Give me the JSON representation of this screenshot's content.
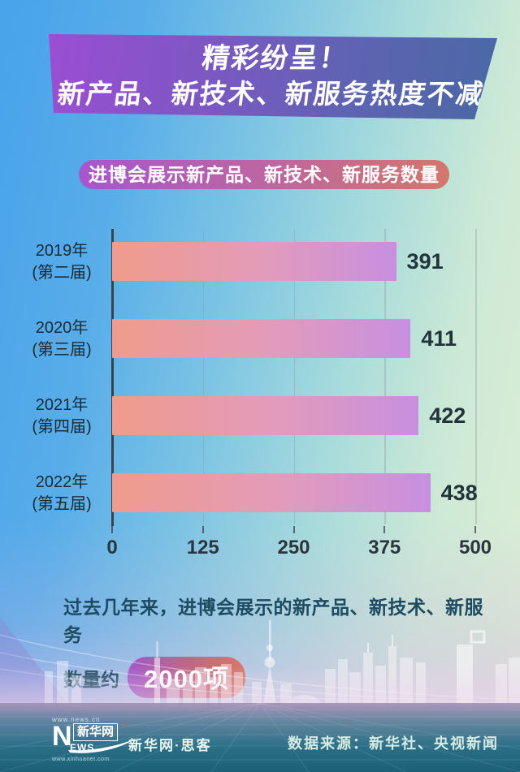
{
  "banner": {
    "line1": "精彩纷呈！",
    "line2": "新产品、新技术、新服务热度不减"
  },
  "chart_header": {
    "label": "进博会展示新产品、新技术、新服务数量"
  },
  "chart_data": {
    "type": "bar",
    "orientation": "horizontal",
    "title": "进博会展示新产品、新技术、新服务数量",
    "categories": [
      "2019年(第二届)",
      "2020年(第三届)",
      "2021年(第四届)",
      "2022年(第五届)"
    ],
    "items": [
      {
        "year": "2019年",
        "session": "(第二届)",
        "value": 391
      },
      {
        "year": "2020年",
        "session": "(第三届)",
        "value": 411
      },
      {
        "year": "2021年",
        "session": "(第四届)",
        "value": 422
      },
      {
        "year": "2022年",
        "session": "(第五届)",
        "value": 438
      }
    ],
    "xlim": [
      0,
      500
    ],
    "xticks": [
      0,
      125,
      250,
      375,
      500
    ],
    "grid": true,
    "legend": "none",
    "bar_gradient": [
      "#F09B8C",
      "#C78FE0"
    ]
  },
  "summary": {
    "line1": "过去几年来，进博会展示的新产品、新技术、新服务",
    "line2_prefix": "数量约",
    "highlight": "2000项"
  },
  "footer": {
    "logo": {
      "url_top": "www.news.cn",
      "n": "N",
      "ews": "EWS",
      "name": "新华网",
      "url_bottom": "www.xinhuanet.com"
    },
    "brand": "新华网·思客",
    "source": "数据来源：新华社、央视新闻"
  },
  "colors": {
    "banner_gradient": [
      "#9E4DD5",
      "#4A68A5"
    ],
    "header_pill_gradient": [
      "#A756CE",
      "#D4766A"
    ],
    "bar_gradient": [
      "#F09B8C",
      "#C78FE0"
    ],
    "highlight_pill_gradient": [
      "#A357CB",
      "#D7776B"
    ],
    "value_label": "#23333C",
    "summary_text": "#1D4B61",
    "source_text": "#D6EBE2"
  }
}
